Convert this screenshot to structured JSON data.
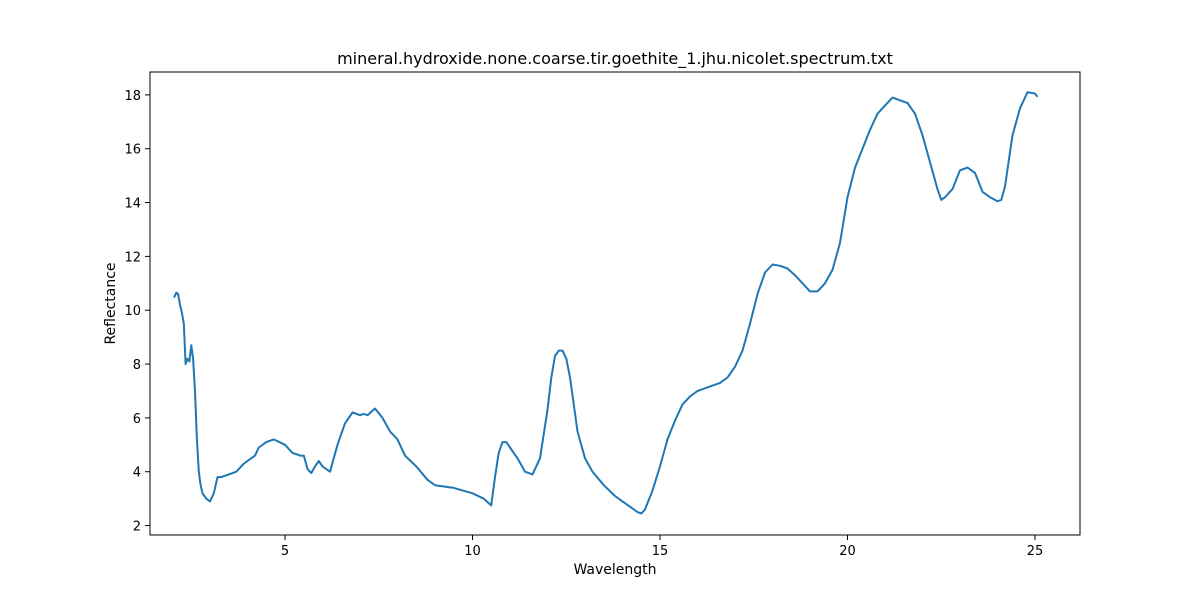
{
  "chart_data": {
    "type": "line",
    "title": "mineral.hydroxide.none.coarse.tir.goethite_1.jhu.nicolet.spectrum.txt",
    "xlabel": "Wavelength",
    "ylabel": "Reflectance",
    "xlim": [
      1.4,
      26.2
    ],
    "ylim": [
      1.65,
      18.85
    ],
    "xticks": [
      5,
      10,
      15,
      20,
      25
    ],
    "yticks": [
      2,
      4,
      6,
      8,
      10,
      12,
      14,
      16,
      18
    ],
    "grid": false,
    "series_color": "#1f77b4",
    "series": [
      {
        "x": [
          2.05,
          2.1,
          2.15,
          2.2,
          2.25,
          2.3,
          2.35,
          2.4,
          2.45,
          2.5,
          2.55,
          2.6,
          2.65,
          2.7,
          2.75,
          2.8,
          2.9,
          3.0,
          3.1,
          3.2,
          3.3,
          3.5,
          3.7,
          3.9,
          4.0,
          4.2,
          4.3,
          4.5,
          4.7,
          5.0,
          5.2,
          5.3,
          5.4,
          5.5,
          5.6,
          5.7,
          5.8,
          5.9,
          6.0,
          6.2,
          6.4,
          6.6,
          6.8,
          7.0,
          7.1,
          7.2,
          7.4,
          7.6,
          7.8,
          8.0,
          8.2,
          8.5,
          8.8,
          9.0,
          9.5,
          10.0,
          10.3,
          10.5,
          10.6,
          10.7,
          10.8,
          10.9,
          11.0,
          11.2,
          11.4,
          11.6,
          11.8,
          12.0,
          12.1,
          12.2,
          12.3,
          12.4,
          12.5,
          12.6,
          12.8,
          13.0,
          13.2,
          13.5,
          13.8,
          14.0,
          14.2,
          14.4,
          14.5,
          14.6,
          14.8,
          15.0,
          15.2,
          15.4,
          15.6,
          15.8,
          16.0,
          16.2,
          16.4,
          16.6,
          16.8,
          17.0,
          17.2,
          17.4,
          17.6,
          17.8,
          18.0,
          18.2,
          18.4,
          18.6,
          18.8,
          19.0,
          19.2,
          19.4,
          19.6,
          19.8,
          20.0,
          20.2,
          20.4,
          20.6,
          20.8,
          21.0,
          21.2,
          21.4,
          21.6,
          21.8,
          22.0,
          22.2,
          22.4,
          22.5,
          22.6,
          22.8,
          23.0,
          23.2,
          23.4,
          23.6,
          23.8,
          24.0,
          24.1,
          24.2,
          24.4,
          24.6,
          24.8,
          25.0,
          25.05
        ],
        "y": [
          10.5,
          10.65,
          10.6,
          10.2,
          9.9,
          9.5,
          8.0,
          8.2,
          8.1,
          8.7,
          8.2,
          7.0,
          5.2,
          4.0,
          3.5,
          3.2,
          3.0,
          2.9,
          3.2,
          3.8,
          3.8,
          3.9,
          4.0,
          4.3,
          4.4,
          4.6,
          4.9,
          5.1,
          5.2,
          5.0,
          4.7,
          4.65,
          4.6,
          4.6,
          4.1,
          3.95,
          4.2,
          4.4,
          4.2,
          4.0,
          5.0,
          5.8,
          6.2,
          6.1,
          6.15,
          6.1,
          6.35,
          6.0,
          5.5,
          5.2,
          4.6,
          4.2,
          3.7,
          3.5,
          3.4,
          3.2,
          3.0,
          2.75,
          3.8,
          4.7,
          5.1,
          5.1,
          4.9,
          4.5,
          4.0,
          3.9,
          4.5,
          6.3,
          7.5,
          8.3,
          8.5,
          8.5,
          8.2,
          7.5,
          5.5,
          4.5,
          4.0,
          3.5,
          3.1,
          2.9,
          2.7,
          2.5,
          2.45,
          2.6,
          3.3,
          4.2,
          5.2,
          5.9,
          6.5,
          6.8,
          7.0,
          7.1,
          7.2,
          7.3,
          7.5,
          7.9,
          8.5,
          9.5,
          10.6,
          11.4,
          11.7,
          11.65,
          11.55,
          11.3,
          11.0,
          10.7,
          10.7,
          11.0,
          11.5,
          12.5,
          14.2,
          15.3,
          16.0,
          16.7,
          17.3,
          17.6,
          17.9,
          17.8,
          17.7,
          17.3,
          16.5,
          15.5,
          14.5,
          14.1,
          14.2,
          14.5,
          15.2,
          15.3,
          15.1,
          14.4,
          14.2,
          14.05,
          14.1,
          14.6,
          16.5,
          17.5,
          18.1,
          18.05,
          17.95
        ]
      }
    ]
  }
}
